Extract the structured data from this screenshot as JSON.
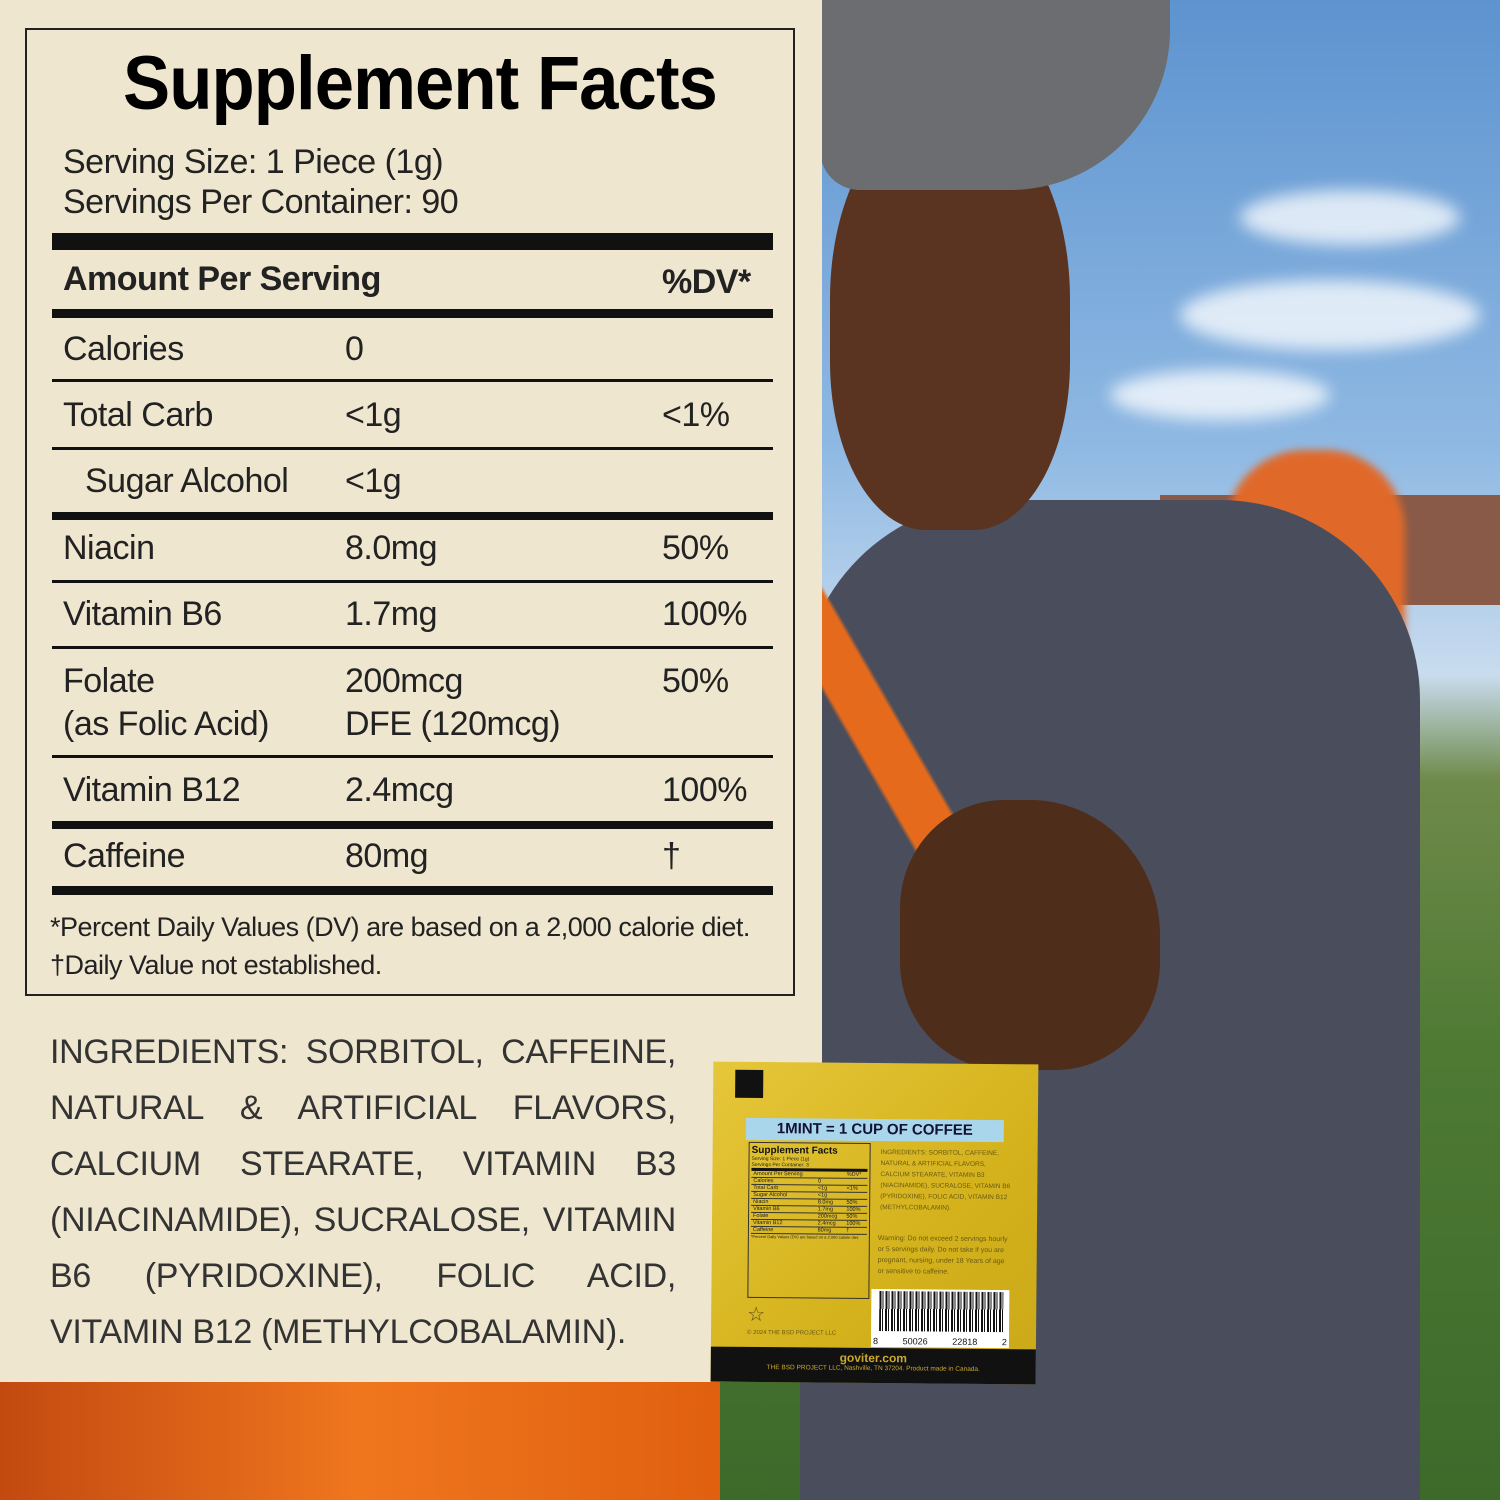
{
  "facts": {
    "title": "Supplement Facts",
    "serving_size": "Serving Size: 1 Piece (1g)",
    "servings_per_container": "Servings Per Container: 90",
    "amount_header": "Amount Per Serving",
    "dv_header": "%DV*",
    "rows": [
      {
        "name": "Calories",
        "amount": "0",
        "dv": ""
      },
      {
        "name": "Total Carb",
        "amount": "<1g",
        "dv": "<1%"
      },
      {
        "name": "Sugar Alcohol",
        "amount": "<1g",
        "dv": ""
      },
      {
        "name": "Niacin",
        "amount": "8.0mg",
        "dv": "50%"
      },
      {
        "name": "Vitamin B6",
        "amount": "1.7mg",
        "dv": "100%"
      },
      {
        "name": "Folate",
        "name2": "(as Folic Acid)",
        "amount": "200mcg",
        "amount2": "DFE (120mcg)",
        "dv": "50%"
      },
      {
        "name": "Vitamin B12",
        "amount": "2.4mcg",
        "dv": "100%"
      },
      {
        "name": "Caffeine",
        "amount": "80mg",
        "dv": "†"
      }
    ],
    "footnote1": "*Percent Daily Values (DV) are based on a 2,000 calorie diet.",
    "footnote2": "†Daily Value not established."
  },
  "ingredients": "INGREDIENTS: SORBITOL, CAFFEINE, NATURAL & ARTIFICIAL FLAVORS, CALCIUM STEARATE, VITAMIN B3 (NIACINAMIDE), SUCRALOSE, VITAMIN B6 (PYRIDOXINE), FOLIC ACID, VITAMIN B12 (METHYLCOBALAMIN).",
  "packet": {
    "headline": "1MINT = 1 CUP OF COFFEE",
    "servings_per_container": "Servings Per Container: 3",
    "ingredients": "INGREDIENTS: SORBITOL, CAFFEINE, NATURAL & ARTIFICIAL FLAVORS, CALCIUM STEARATE, VITAMIN B3 (NIACINAMIDE), SUCRALOSE, VITAMIN B6 (PYRIDOXINE), FOLIC ACID, VITAMIN B12 (METHYLCOBALAMIN).",
    "warning": "Warning: Do not exceed 2 servings hourly or 5 servings daily. Do not take if you are pregnant, nursing, under 18 Years of age or sensitive to caffeine.",
    "copyright": "© 2024 THE BSD PROJECT LLC",
    "barcode": [
      "8",
      "50026",
      "22818",
      "2"
    ],
    "website": "goviter.com",
    "address": "THE BSD PROJECT LLC, Nashville, TN 37204. Product made in Canada.",
    "colors": {
      "packet": "#d9b823",
      "band": "#a9d6ea",
      "bottom": "#111111"
    }
  }
}
